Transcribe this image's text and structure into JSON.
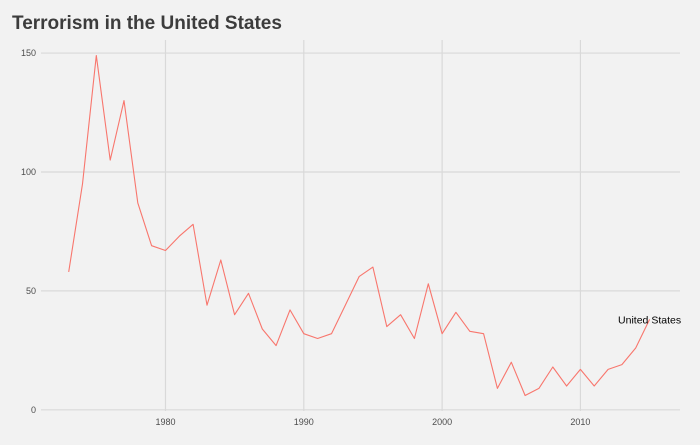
{
  "chart_data": {
    "type": "line",
    "title": "Terrorism in the United States",
    "xlabel": "",
    "ylabel": "",
    "xlim": [
      1971,
      2017.2
    ],
    "ylim": [
      -0.5,
      155.5
    ],
    "x_ticks": [
      1980,
      1990,
      2000,
      2010
    ],
    "y_ticks": [
      0,
      50,
      100,
      150
    ],
    "grid": true,
    "legend": "none",
    "series": [
      {
        "name": "United States",
        "color": "#f8766d",
        "x": [
          1973,
          1974,
          1975,
          1976,
          1977,
          1978,
          1979,
          1980,
          1981,
          1982,
          1983,
          1984,
          1985,
          1986,
          1987,
          1988,
          1989,
          1990,
          1991,
          1992,
          1993,
          1994,
          1995,
          1996,
          1997,
          1998,
          1999,
          2000,
          2001,
          2002,
          2003,
          2004,
          2005,
          2006,
          2007,
          2008,
          2009,
          2010,
          2011,
          2012,
          2013,
          2014,
          2015
        ],
        "y": [
          58,
          95,
          149,
          105,
          130,
          87,
          69,
          67,
          73,
          78,
          44,
          63,
          40,
          49,
          34,
          27,
          42,
          32,
          30,
          32,
          44,
          56,
          60,
          35,
          40,
          30,
          53,
          32,
          41,
          33,
          32,
          9,
          20,
          6,
          9,
          18,
          10,
          17,
          10,
          17,
          19,
          26,
          38
        ]
      }
    ]
  }
}
